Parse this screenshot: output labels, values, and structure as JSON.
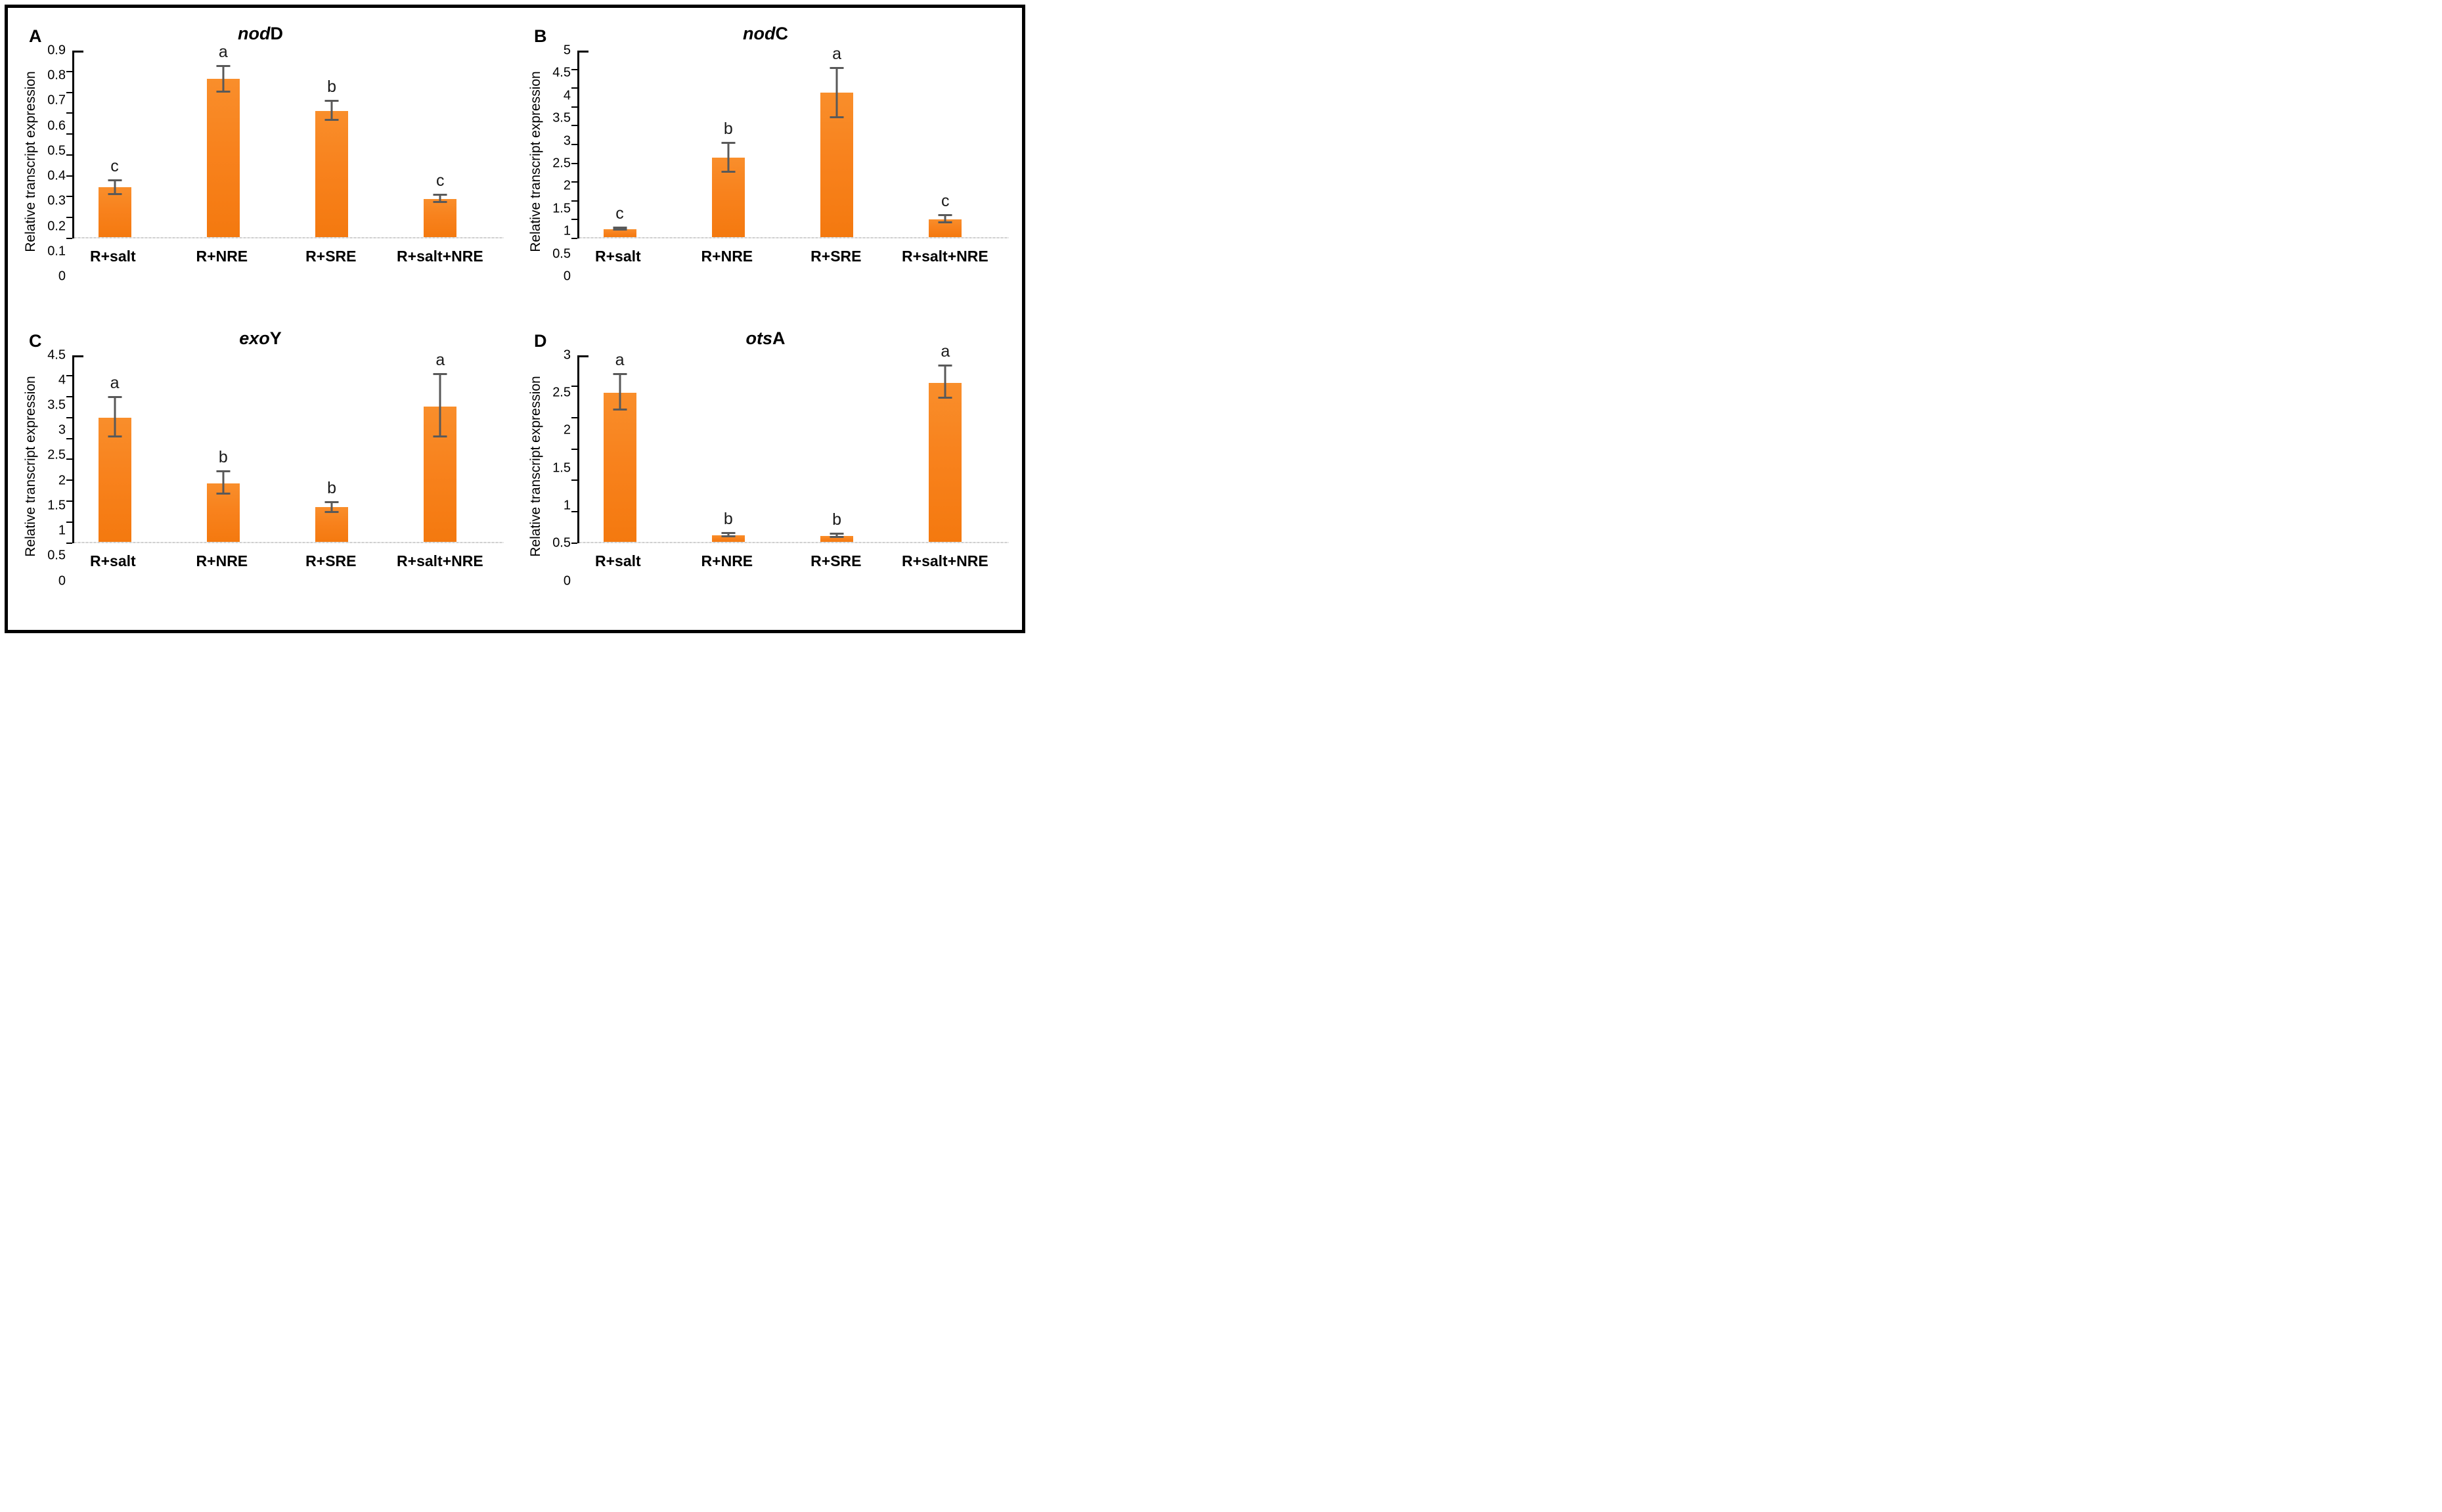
{
  "figure": {
    "y_axis_title": "Relative transcript expression",
    "bar_color": "#F8821D",
    "error_bar_color": "#595959",
    "axis_color": "#000000",
    "baseline_color": "#D9D9D9"
  },
  "chart_data": [
    {
      "type": "bar",
      "panel_label": "A",
      "title_italic": "nod",
      "title_regular": "D",
      "title": "nodD",
      "categories": [
        "R+salt",
        "R+NRE",
        "R+SRE",
        "R+salt+NRE"
      ],
      "values": [
        0.24,
        0.765,
        0.61,
        0.185
      ],
      "errors_up": [
        0.032,
        0.06,
        0.045,
        0.018
      ],
      "errors_down": [
        0.033,
        0.065,
        0.045,
        0.018
      ],
      "sig_letters": [
        "c",
        "a",
        "b",
        "c"
      ],
      "ylabel": "Relative transcript expression",
      "ylim": [
        0,
        0.9
      ],
      "yticks": [
        "0.9",
        "0.8",
        "0.7",
        "0.6",
        "0.5",
        "0.4",
        "0.3",
        "0.2",
        "0.1",
        "0"
      ],
      "grid": false,
      "legend": false
    },
    {
      "type": "bar",
      "panel_label": "B",
      "title_italic": "nod",
      "title_regular": "C",
      "title": "nodC",
      "categories": [
        "R+salt",
        "R+NRE",
        "R+SRE",
        "R+salt+NRE"
      ],
      "values": [
        0.22,
        2.13,
        3.87,
        0.48
      ],
      "errors_up": [
        0.03,
        0.39,
        0.65,
        0.1
      ],
      "errors_down": [
        0.03,
        0.38,
        0.66,
        0.1
      ],
      "sig_letters": [
        "c",
        "b",
        "a",
        "c"
      ],
      "ylabel": "Relative transcript expression",
      "ylim": [
        0,
        5
      ],
      "yticks": [
        "5",
        "4.5",
        "4",
        "3.5",
        "3",
        "2.5",
        "2",
        "1.5",
        "1",
        "0.5",
        "0"
      ],
      "grid": false,
      "legend": false
    },
    {
      "type": "bar",
      "panel_label": "C",
      "title_italic": "exo",
      "title_regular": "Y",
      "title": "exoY",
      "categories": [
        "R+salt",
        "R+NRE",
        "R+SRE",
        "R+salt+NRE"
      ],
      "values": [
        2.98,
        1.4,
        0.83,
        3.26
      ],
      "errors_up": [
        0.5,
        0.28,
        0.12,
        0.77
      ],
      "errors_down": [
        0.45,
        0.25,
        0.12,
        0.73
      ],
      "sig_letters": [
        "a",
        "b",
        "b",
        "a"
      ],
      "ylabel": "Relative transcript expression",
      "ylim": [
        0,
        4.5
      ],
      "yticks": [
        "4.5",
        "4",
        "3.5",
        "3",
        "2.5",
        "2",
        "1.5",
        "1",
        "0.5",
        "0"
      ],
      "grid": false,
      "legend": false
    },
    {
      "type": "bar",
      "panel_label": "D",
      "title_italic": "ots",
      "title_regular": "A",
      "title": "otsA",
      "categories": [
        "R+salt",
        "R+NRE",
        "R+SRE",
        "R+salt+NRE"
      ],
      "values": [
        2.39,
        0.1,
        0.09,
        2.55
      ],
      "errors_up": [
        0.3,
        0.03,
        0.03,
        0.28
      ],
      "errors_down": [
        0.27,
        0.02,
        0.02,
        0.24
      ],
      "sig_letters": [
        "a",
        "b",
        "b",
        "a"
      ],
      "ylabel": "Relative transcript expression",
      "ylim": [
        0,
        3
      ],
      "yticks": [
        "3",
        "2.5",
        "2",
        "1.5",
        "1",
        "0.5",
        "0"
      ],
      "grid": false,
      "legend": false
    }
  ]
}
